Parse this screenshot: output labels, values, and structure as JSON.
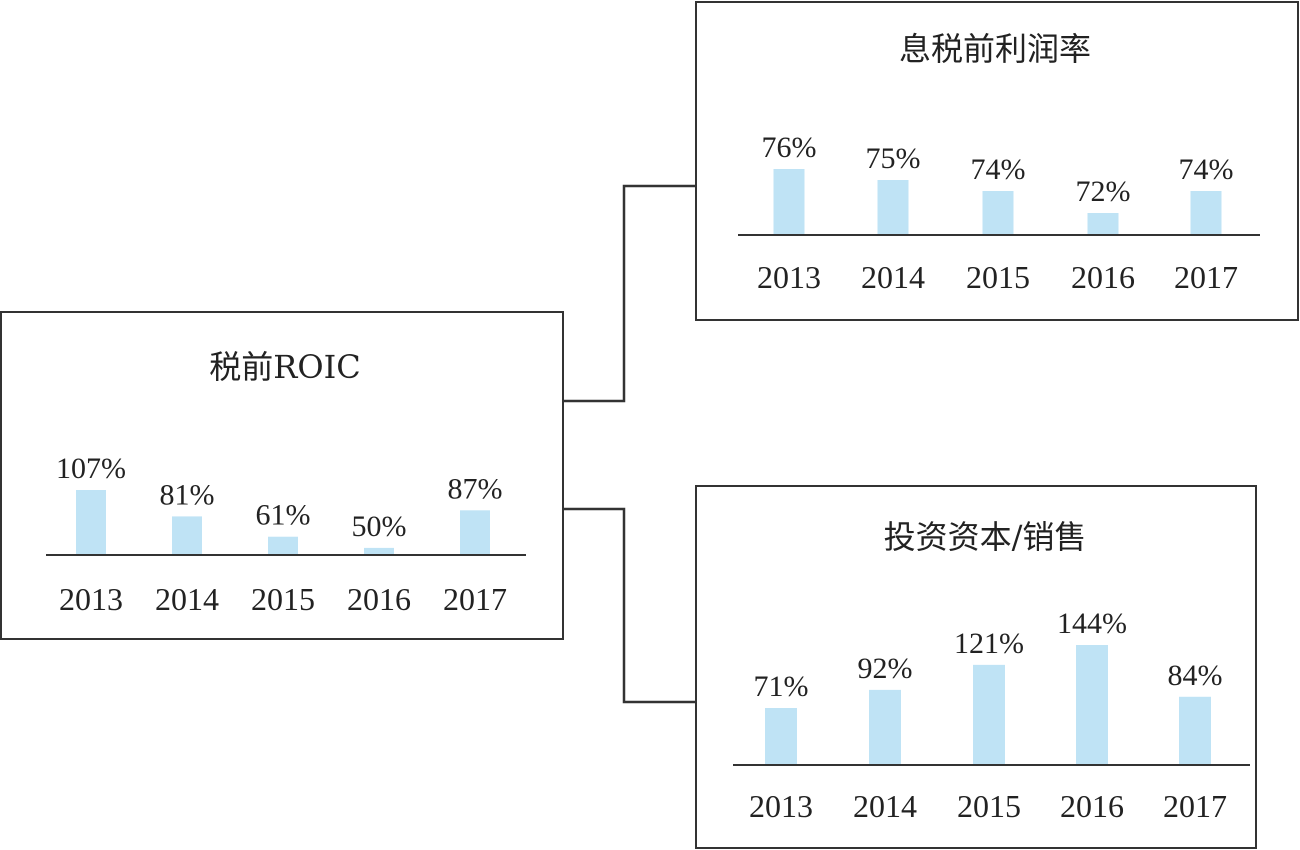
{
  "colors": {
    "bar": "#bfe3f5",
    "line": "#333333",
    "background": "#ffffff"
  },
  "chart_data": [
    {
      "id": "roic",
      "type": "bar",
      "title": "税前ROIC",
      "categories": [
        "2013",
        "2014",
        "2015",
        "2016",
        "2017"
      ],
      "values": [
        107,
        81,
        61,
        50,
        87
      ],
      "value_labels": [
        "107%",
        "81%",
        "61%",
        "50%",
        "87%"
      ],
      "unit": "%"
    },
    {
      "id": "ebit_margin",
      "type": "bar",
      "title": "息税前利润率",
      "categories": [
        "2013",
        "2014",
        "2015",
        "2016",
        "2017"
      ],
      "values": [
        76,
        75,
        74,
        72,
        74
      ],
      "value_labels": [
        "76%",
        "75%",
        "74%",
        "72%",
        "74%"
      ],
      "unit": "%"
    },
    {
      "id": "capital_turnover",
      "type": "bar",
      "title": "投资资本/销售",
      "categories": [
        "2013",
        "2014",
        "2015",
        "2016",
        "2017"
      ],
      "values": [
        71,
        92,
        121,
        144,
        84
      ],
      "value_labels": [
        "71%",
        "92%",
        "121%",
        "144%",
        "84%"
      ],
      "unit": "%"
    }
  ]
}
